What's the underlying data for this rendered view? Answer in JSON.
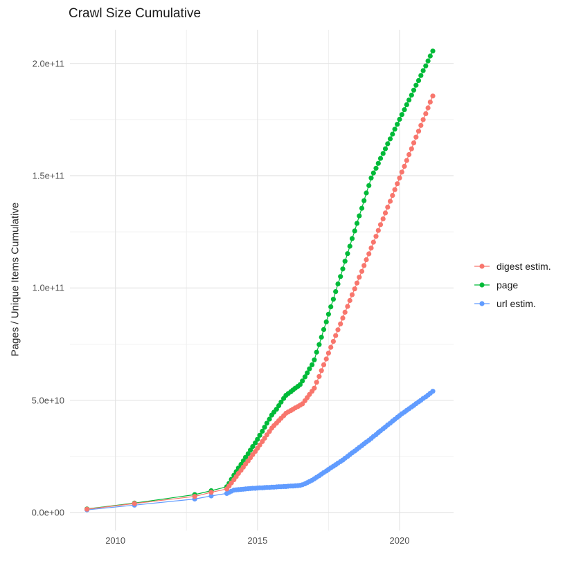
{
  "title": "Crawl Size Cumulative",
  "ylabel": "Pages / Unique Items Cumulative",
  "legend": {
    "position": "right",
    "items": [
      {
        "label": "digest estim.",
        "color": "#F8766D"
      },
      {
        "label": "page",
        "color": "#00BA38"
      },
      {
        "label": "url estim.",
        "color": "#619CFF"
      }
    ]
  },
  "chart_data": {
    "type": "line",
    "title": "Crawl Size Cumulative",
    "xlabel": "",
    "ylabel": "Pages / Unique Items Cumulative",
    "grid": "major+minor",
    "legend_position": "right",
    "xlim": [
      2008.4,
      2021.9
    ],
    "ylim": [
      -8000000000.0,
      215000000000.0
    ],
    "x_ticks": [
      {
        "label": "2010",
        "year": 2010
      },
      {
        "label": "2015",
        "year": 2015
      },
      {
        "label": "2020",
        "year": 2020
      }
    ],
    "y_ticks": [
      {
        "label": "0.0e+00",
        "value": 0
      },
      {
        "label": "5.0e+10",
        "value": 50000000000.0
      },
      {
        "label": "1.0e+11",
        "value": 100000000000.0
      },
      {
        "label": "1.5e+11",
        "value": 150000000000.0
      },
      {
        "label": "2.0e+11",
        "value": 200000000000.0
      }
    ],
    "x_minor": [
      2012.5,
      2017.5
    ],
    "y_minor": [
      25000000000.0,
      75000000000.0,
      125000000000.0,
      175000000000.0
    ],
    "value_unit": 1000000000.0,
    "series": [
      {
        "name": "digest estim.",
        "color": "#F8766D",
        "z": 3,
        "points": [
          [
            2009.0,
            1.5
          ],
          [
            2010.67,
            4.0
          ],
          [
            2012.79,
            7.2
          ],
          [
            2013.37,
            9.0
          ],
          [
            2013.92,
            10.5
          ],
          [
            2014.0,
            11.8
          ],
          [
            2014.08,
            13.2
          ],
          [
            2014.17,
            14.6
          ],
          [
            2014.25,
            16.0
          ],
          [
            2014.33,
            17.4
          ],
          [
            2014.42,
            18.8
          ],
          [
            2014.5,
            20.2
          ],
          [
            2014.58,
            21.6
          ],
          [
            2014.67,
            23.0
          ],
          [
            2014.75,
            24.4
          ],
          [
            2014.83,
            25.8
          ],
          [
            2014.92,
            27.2
          ],
          [
            2015.0,
            28.6
          ],
          [
            2015.08,
            30.1
          ],
          [
            2015.17,
            31.6
          ],
          [
            2015.25,
            33.1
          ],
          [
            2015.33,
            34.6
          ],
          [
            2015.42,
            36.1
          ],
          [
            2015.5,
            37.6
          ],
          [
            2015.58,
            38.7
          ],
          [
            2015.67,
            39.8
          ],
          [
            2015.75,
            40.9
          ],
          [
            2015.83,
            42.0
          ],
          [
            2015.92,
            43.1
          ],
          [
            2016.0,
            44.2
          ],
          [
            2016.08,
            44.8
          ],
          [
            2016.17,
            45.4
          ],
          [
            2016.25,
            46.0
          ],
          [
            2016.33,
            46.6
          ],
          [
            2016.42,
            47.2
          ],
          [
            2016.5,
            47.8
          ],
          [
            2016.58,
            48.4
          ],
          [
            2016.67,
            49.8
          ],
          [
            2016.75,
            51.2
          ],
          [
            2016.83,
            52.6
          ],
          [
            2016.92,
            54.0
          ],
          [
            2017.0,
            55.4
          ],
          [
            2017.08,
            58.0
          ],
          [
            2017.17,
            60.6
          ],
          [
            2017.25,
            63.2
          ],
          [
            2017.33,
            65.8
          ],
          [
            2017.42,
            68.4
          ],
          [
            2017.5,
            71.0
          ],
          [
            2017.58,
            73.6
          ],
          [
            2017.67,
            76.2
          ],
          [
            2017.75,
            78.8
          ],
          [
            2017.83,
            81.4
          ],
          [
            2017.92,
            84.0
          ],
          [
            2018.0,
            86.6
          ],
          [
            2018.08,
            89.2
          ],
          [
            2018.17,
            91.8
          ],
          [
            2018.25,
            94.4
          ],
          [
            2018.33,
            97.0
          ],
          [
            2018.42,
            99.6
          ],
          [
            2018.5,
            102.2
          ],
          [
            2018.58,
            104.8
          ],
          [
            2018.67,
            107.4
          ],
          [
            2018.75,
            110.0
          ],
          [
            2018.83,
            112.6
          ],
          [
            2018.92,
            115.2
          ],
          [
            2019.0,
            117.8
          ],
          [
            2019.08,
            120.4
          ],
          [
            2019.17,
            123.0
          ],
          [
            2019.25,
            125.6
          ],
          [
            2019.33,
            128.2
          ],
          [
            2019.42,
            130.8
          ],
          [
            2019.5,
            133.4
          ],
          [
            2019.58,
            136.0
          ],
          [
            2019.67,
            138.6
          ],
          [
            2019.75,
            141.2
          ],
          [
            2019.83,
            143.8
          ],
          [
            2019.92,
            146.4
          ],
          [
            2020.0,
            149.0
          ],
          [
            2020.08,
            151.6
          ],
          [
            2020.17,
            154.2
          ],
          [
            2020.25,
            156.8
          ],
          [
            2020.33,
            159.4
          ],
          [
            2020.42,
            162.0
          ],
          [
            2020.5,
            164.6
          ],
          [
            2020.58,
            167.2
          ],
          [
            2020.67,
            169.8
          ],
          [
            2020.75,
            172.4
          ],
          [
            2020.83,
            175.0
          ],
          [
            2020.92,
            177.6
          ],
          [
            2021.0,
            180.2
          ],
          [
            2021.08,
            182.8
          ],
          [
            2021.17,
            185.5
          ]
        ]
      },
      {
        "name": "page",
        "color": "#00BA38",
        "z": 1,
        "points": [
          [
            2009.0,
            1.6
          ],
          [
            2010.67,
            4.2
          ],
          [
            2012.79,
            8.0
          ],
          [
            2013.37,
            9.7
          ],
          [
            2013.92,
            11.5
          ],
          [
            2014.0,
            13.0
          ],
          [
            2014.08,
            14.8
          ],
          [
            2014.17,
            16.6
          ],
          [
            2014.25,
            18.2
          ],
          [
            2014.33,
            19.8
          ],
          [
            2014.42,
            21.4
          ],
          [
            2014.5,
            23.0
          ],
          [
            2014.58,
            24.6
          ],
          [
            2014.67,
            26.2
          ],
          [
            2014.75,
            27.8
          ],
          [
            2014.83,
            29.4
          ],
          [
            2014.92,
            31.0
          ],
          [
            2015.0,
            32.6
          ],
          [
            2015.08,
            34.4
          ],
          [
            2015.17,
            36.2
          ],
          [
            2015.25,
            38.0
          ],
          [
            2015.33,
            39.8
          ],
          [
            2015.42,
            41.6
          ],
          [
            2015.5,
            43.4
          ],
          [
            2015.58,
            44.7
          ],
          [
            2015.67,
            46.0
          ],
          [
            2015.75,
            47.6
          ],
          [
            2015.83,
            49.2
          ],
          [
            2015.92,
            50.8
          ],
          [
            2016.0,
            52.2
          ],
          [
            2016.08,
            53.0
          ],
          [
            2016.17,
            53.8
          ],
          [
            2016.25,
            54.6
          ],
          [
            2016.33,
            55.4
          ],
          [
            2016.42,
            56.2
          ],
          [
            2016.5,
            57.0
          ],
          [
            2016.58,
            58.6
          ],
          [
            2016.67,
            60.4
          ],
          [
            2016.75,
            62.2
          ],
          [
            2016.83,
            64.0
          ],
          [
            2016.92,
            65.8
          ],
          [
            2017.0,
            68.0
          ],
          [
            2017.08,
            71.4
          ],
          [
            2017.17,
            74.8
          ],
          [
            2017.25,
            78.1
          ],
          [
            2017.33,
            81.5
          ],
          [
            2017.42,
            84.9
          ],
          [
            2017.5,
            88.3
          ],
          [
            2017.58,
            91.6
          ],
          [
            2017.67,
            95.0
          ],
          [
            2017.75,
            98.4
          ],
          [
            2017.83,
            101.8
          ],
          [
            2017.92,
            105.1
          ],
          [
            2018.0,
            108.5
          ],
          [
            2018.08,
            111.9
          ],
          [
            2018.17,
            115.3
          ],
          [
            2018.25,
            118.6
          ],
          [
            2018.33,
            122.0
          ],
          [
            2018.42,
            125.4
          ],
          [
            2018.5,
            128.8
          ],
          [
            2018.58,
            132.1
          ],
          [
            2018.67,
            135.5
          ],
          [
            2018.75,
            138.9
          ],
          [
            2018.83,
            142.3
          ],
          [
            2018.92,
            145.6
          ],
          [
            2019.0,
            149.0
          ],
          [
            2019.08,
            151.2
          ],
          [
            2019.17,
            153.3
          ],
          [
            2019.25,
            155.5
          ],
          [
            2019.33,
            157.7
          ],
          [
            2019.42,
            159.9
          ],
          [
            2019.5,
            162.0
          ],
          [
            2019.58,
            164.2
          ],
          [
            2019.67,
            166.4
          ],
          [
            2019.75,
            168.5
          ],
          [
            2019.83,
            170.7
          ],
          [
            2019.92,
            172.9
          ],
          [
            2020.0,
            175.1
          ],
          [
            2020.08,
            177.2
          ],
          [
            2020.17,
            179.4
          ],
          [
            2020.25,
            181.6
          ],
          [
            2020.33,
            183.7
          ],
          [
            2020.42,
            185.9
          ],
          [
            2020.5,
            188.1
          ],
          [
            2020.58,
            190.3
          ],
          [
            2020.67,
            192.4
          ],
          [
            2020.75,
            194.6
          ],
          [
            2020.83,
            196.8
          ],
          [
            2020.92,
            198.9
          ],
          [
            2021.0,
            201.1
          ],
          [
            2021.08,
            203.3
          ],
          [
            2021.17,
            205.5
          ]
        ]
      },
      {
        "name": "url estim.",
        "color": "#619CFF",
        "z": 2,
        "points": [
          [
            2009.0,
            1.2
          ],
          [
            2010.67,
            3.3
          ],
          [
            2012.79,
            6.0
          ],
          [
            2013.37,
            7.4
          ],
          [
            2013.92,
            8.5
          ],
          [
            2014.0,
            9.0
          ],
          [
            2014.08,
            9.5
          ],
          [
            2014.17,
            10.0
          ],
          [
            2014.25,
            10.1
          ],
          [
            2014.33,
            10.2
          ],
          [
            2014.42,
            10.3
          ],
          [
            2014.5,
            10.4
          ],
          [
            2014.58,
            10.5
          ],
          [
            2014.67,
            10.6
          ],
          [
            2014.75,
            10.7
          ],
          [
            2014.83,
            10.8
          ],
          [
            2014.92,
            10.8
          ],
          [
            2015.0,
            10.9
          ],
          [
            2015.08,
            11.0
          ],
          [
            2015.17,
            11.0
          ],
          [
            2015.25,
            11.1
          ],
          [
            2015.33,
            11.2
          ],
          [
            2015.42,
            11.2
          ],
          [
            2015.5,
            11.3
          ],
          [
            2015.58,
            11.3
          ],
          [
            2015.67,
            11.4
          ],
          [
            2015.75,
            11.5
          ],
          [
            2015.83,
            11.5
          ],
          [
            2015.92,
            11.6
          ],
          [
            2016.0,
            11.6
          ],
          [
            2016.08,
            11.7
          ],
          [
            2016.17,
            11.8
          ],
          [
            2016.25,
            11.8
          ],
          [
            2016.33,
            11.9
          ],
          [
            2016.42,
            12.0
          ],
          [
            2016.5,
            12.1
          ],
          [
            2016.58,
            12.4
          ],
          [
            2016.67,
            12.8
          ],
          [
            2016.75,
            13.3
          ],
          [
            2016.83,
            13.8
          ],
          [
            2016.92,
            14.4
          ],
          [
            2017.0,
            15.0
          ],
          [
            2017.08,
            15.7
          ],
          [
            2017.17,
            16.4
          ],
          [
            2017.25,
            17.1
          ],
          [
            2017.33,
            17.8
          ],
          [
            2017.42,
            18.5
          ],
          [
            2017.5,
            19.2
          ],
          [
            2017.58,
            19.9
          ],
          [
            2017.67,
            20.6
          ],
          [
            2017.75,
            21.3
          ],
          [
            2017.83,
            22.0
          ],
          [
            2017.92,
            22.7
          ],
          [
            2018.0,
            23.4
          ],
          [
            2018.08,
            24.2
          ],
          [
            2018.17,
            25.0
          ],
          [
            2018.25,
            25.8
          ],
          [
            2018.33,
            26.6
          ],
          [
            2018.42,
            27.4
          ],
          [
            2018.5,
            28.2
          ],
          [
            2018.58,
            29.0
          ],
          [
            2018.67,
            29.8
          ],
          [
            2018.75,
            30.6
          ],
          [
            2018.83,
            31.4
          ],
          [
            2018.92,
            32.2
          ],
          [
            2019.0,
            33.0
          ],
          [
            2019.08,
            33.9
          ],
          [
            2019.17,
            34.7
          ],
          [
            2019.25,
            35.6
          ],
          [
            2019.33,
            36.4
          ],
          [
            2019.42,
            37.3
          ],
          [
            2019.5,
            38.1
          ],
          [
            2019.58,
            39.0
          ],
          [
            2019.67,
            39.8
          ],
          [
            2019.75,
            40.7
          ],
          [
            2019.83,
            41.5
          ],
          [
            2019.92,
            42.4
          ],
          [
            2020.0,
            43.2
          ],
          [
            2020.08,
            44.0
          ],
          [
            2020.17,
            44.7
          ],
          [
            2020.25,
            45.5
          ],
          [
            2020.33,
            46.2
          ],
          [
            2020.42,
            47.0
          ],
          [
            2020.5,
            47.7
          ],
          [
            2020.58,
            48.5
          ],
          [
            2020.67,
            49.3
          ],
          [
            2020.75,
            50.0
          ],
          [
            2020.83,
            50.8
          ],
          [
            2020.92,
            51.5
          ],
          [
            2021.0,
            52.3
          ],
          [
            2021.08,
            53.1
          ],
          [
            2021.17,
            54.0
          ]
        ]
      }
    ]
  }
}
